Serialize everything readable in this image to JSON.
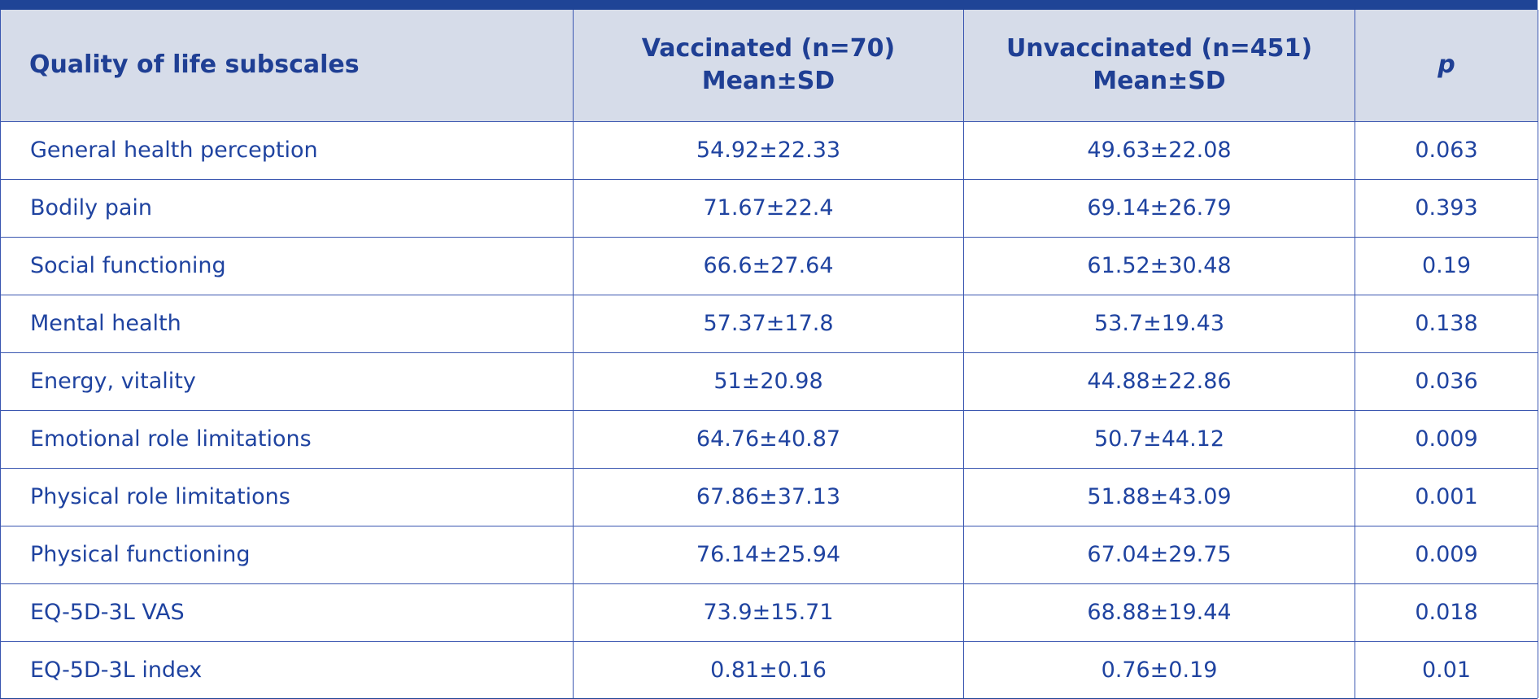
{
  "table": {
    "headers": {
      "subscale": "Quality of life subscales",
      "vaccinated_line1": "Vaccinated (n=70)",
      "vaccinated_line2": "Mean±SD",
      "unvaccinated_line1": "Unvaccinated (n=451)",
      "unvaccinated_line2": "Mean±SD",
      "p": "p"
    },
    "rows": [
      {
        "subscale": "General health perception",
        "vaccinated": "54.92±22.33",
        "unvaccinated": "49.63±22.08",
        "p": "0.063"
      },
      {
        "subscale": "Bodily pain",
        "vaccinated": "71.67±22.4",
        "unvaccinated": "69.14±26.79",
        "p": "0.393"
      },
      {
        "subscale": "Social functioning",
        "vaccinated": "66.6±27.64",
        "unvaccinated": "61.52±30.48",
        "p": "0.19"
      },
      {
        "subscale": "Mental health",
        "vaccinated": "57.37±17.8",
        "unvaccinated": "53.7±19.43",
        "p": "0.138"
      },
      {
        "subscale": "Energy, vitality",
        "vaccinated": "51±20.98",
        "unvaccinated": "44.88±22.86",
        "p": "0.036"
      },
      {
        "subscale": "Emotional role limitations",
        "vaccinated": "64.76±40.87",
        "unvaccinated": "50.7±44.12",
        "p": "0.009"
      },
      {
        "subscale": "Physical role limitations",
        "vaccinated": "67.86±37.13",
        "unvaccinated": "51.88±43.09",
        "p": "0.001"
      },
      {
        "subscale": "Physical functioning",
        "vaccinated": "76.14±25.94",
        "unvaccinated": "67.04±29.75",
        "p": "0.009"
      },
      {
        "subscale": "EQ-5D-3L VAS",
        "vaccinated": "73.9±15.71",
        "unvaccinated": "68.88±19.44",
        "p": "0.018"
      },
      {
        "subscale": "EQ-5D-3L index",
        "vaccinated": "0.81±0.16",
        "unvaccinated": "0.76±0.19",
        "p": "0.01"
      }
    ]
  },
  "colors": {
    "accent": "#1f4496",
    "header_bg": "#d6dce9",
    "text": "#1f43a0"
  }
}
